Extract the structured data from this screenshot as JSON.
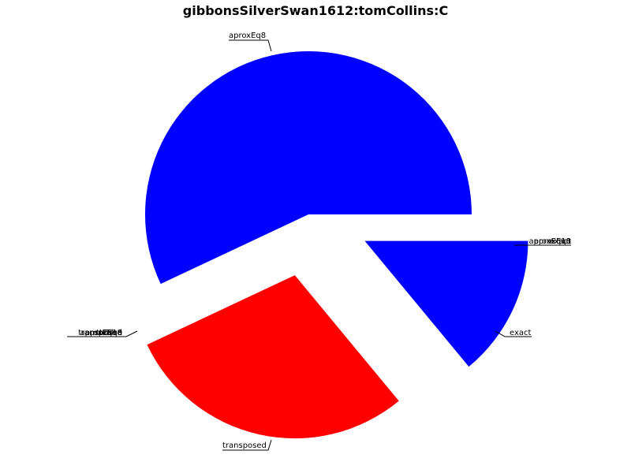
{
  "chart_data": {
    "type": "pie",
    "title": "gibbonsSilverSwan1612:tomCollins:C",
    "slices": [
      {
        "label": "aproxEq8",
        "value": 57,
        "color": "#0000ff",
        "explode": 0
      },
      {
        "label": "transposed",
        "value": 29,
        "color": "#ff0000",
        "explode": 1
      },
      {
        "label": "exact",
        "value": 14,
        "color": "#0000ff",
        "explode": 1
      }
    ],
    "overlapping_labels_left": [
      "transposed",
      "aproxEq8",
      "aproxEq10",
      "ttFalse",
      "ttTrue"
    ],
    "overlapping_labels_right": [
      "aproxEq8",
      "aproxEq10",
      "exact"
    ]
  }
}
